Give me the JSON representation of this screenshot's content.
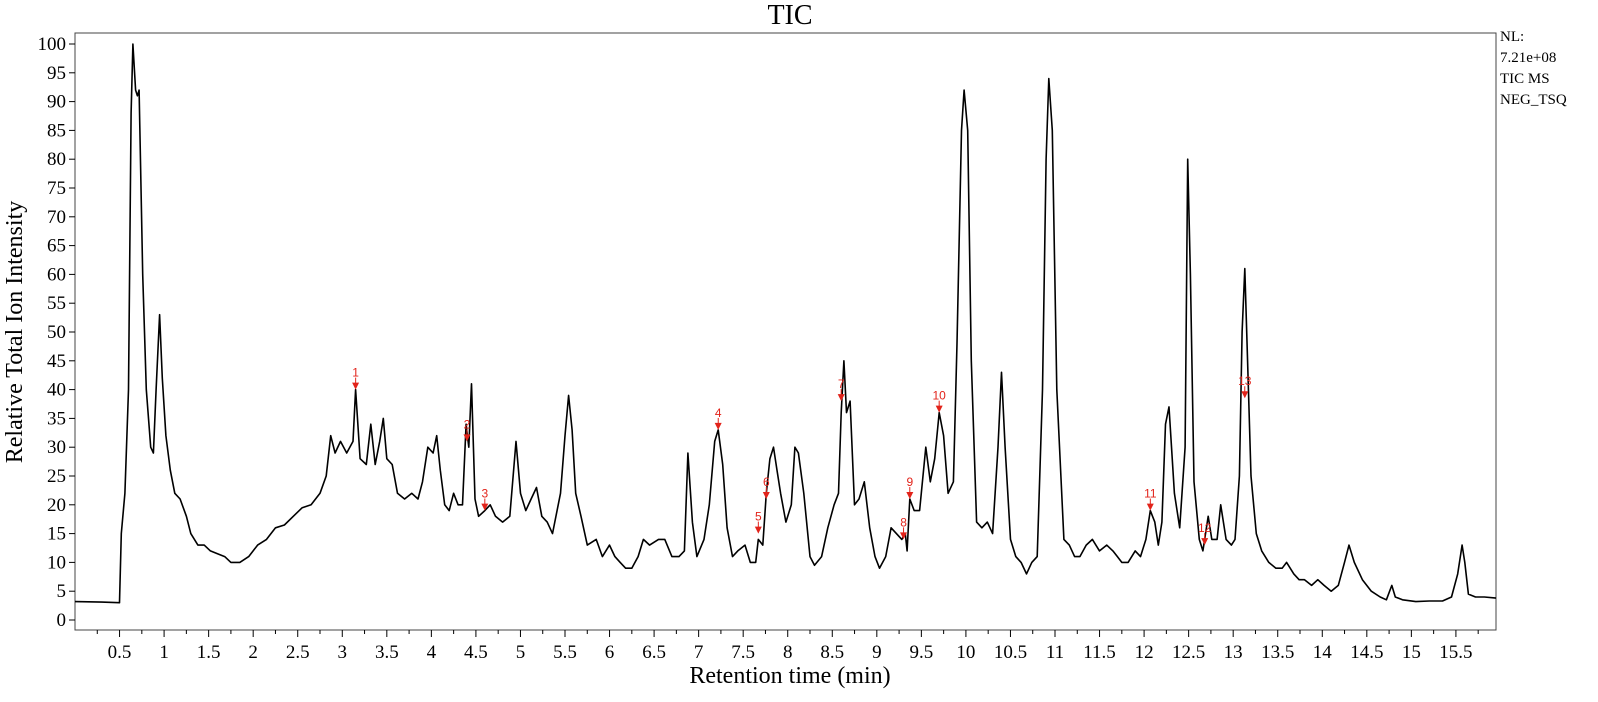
{
  "chart_data": {
    "type": "line",
    "title": "TIC",
    "xlabel": "Retention time (min)",
    "ylabel": "Relative Total Ion Intensity",
    "xlim": [
      0,
      15.95
    ],
    "ylim": [
      0,
      102
    ],
    "x_ticks": [
      0.5,
      1,
      1.5,
      2,
      2.5,
      3,
      3.5,
      4,
      4.5,
      5,
      5.5,
      6,
      6.5,
      7,
      7.5,
      8,
      8.5,
      9,
      9.5,
      10,
      10.5,
      11,
      11.5,
      12,
      12.5,
      13,
      13.5,
      14,
      14.5,
      15,
      15.5
    ],
    "y_ticks": [
      0,
      5,
      10,
      15,
      20,
      25,
      30,
      35,
      40,
      45,
      50,
      55,
      60,
      65,
      70,
      75,
      80,
      85,
      90,
      95,
      100
    ],
    "normalization_note": [
      "NL:",
      "7.21e+08",
      "TIC MS",
      "NEG_TSQ"
    ],
    "series": [
      {
        "color": "#000000",
        "points": [
          [
            0.0,
            3.2
          ],
          [
            0.3,
            3.1
          ],
          [
            0.5,
            3.0
          ],
          [
            0.52,
            15
          ],
          [
            0.56,
            22
          ],
          [
            0.6,
            40
          ],
          [
            0.63,
            88
          ],
          [
            0.65,
            100
          ],
          [
            0.68,
            92
          ],
          [
            0.7,
            91
          ],
          [
            0.72,
            92
          ],
          [
            0.76,
            60
          ],
          [
            0.8,
            40
          ],
          [
            0.85,
            30
          ],
          [
            0.88,
            29
          ],
          [
            0.91,
            40
          ],
          [
            0.95,
            53
          ],
          [
            0.98,
            42
          ],
          [
            1.02,
            32
          ],
          [
            1.07,
            26
          ],
          [
            1.12,
            22
          ],
          [
            1.18,
            21
          ],
          [
            1.25,
            18
          ],
          [
            1.3,
            15
          ],
          [
            1.38,
            13
          ],
          [
            1.45,
            13
          ],
          [
            1.52,
            12
          ],
          [
            1.6,
            11.5
          ],
          [
            1.68,
            11
          ],
          [
            1.75,
            10
          ],
          [
            1.85,
            10
          ],
          [
            1.95,
            11
          ],
          [
            2.05,
            13
          ],
          [
            2.15,
            14
          ],
          [
            2.25,
            16
          ],
          [
            2.35,
            16.5
          ],
          [
            2.45,
            18
          ],
          [
            2.55,
            19.5
          ],
          [
            2.65,
            20
          ],
          [
            2.75,
            22
          ],
          [
            2.82,
            25
          ],
          [
            2.87,
            32
          ],
          [
            2.92,
            29
          ],
          [
            2.98,
            31
          ],
          [
            3.05,
            29
          ],
          [
            3.12,
            31
          ],
          [
            3.15,
            40
          ],
          [
            3.2,
            28
          ],
          [
            3.27,
            27
          ],
          [
            3.32,
            34
          ],
          [
            3.37,
            27
          ],
          [
            3.42,
            31
          ],
          [
            3.46,
            35
          ],
          [
            3.5,
            28
          ],
          [
            3.56,
            27
          ],
          [
            3.62,
            22
          ],
          [
            3.7,
            21
          ],
          [
            3.78,
            22
          ],
          [
            3.85,
            21
          ],
          [
            3.9,
            24
          ],
          [
            3.96,
            30
          ],
          [
            4.02,
            29
          ],
          [
            4.06,
            32
          ],
          [
            4.1,
            26
          ],
          [
            4.15,
            20
          ],
          [
            4.2,
            19
          ],
          [
            4.25,
            22
          ],
          [
            4.3,
            20
          ],
          [
            4.35,
            20
          ],
          [
            4.39,
            34
          ],
          [
            4.42,
            30
          ],
          [
            4.45,
            41
          ],
          [
            4.49,
            21
          ],
          [
            4.53,
            18
          ],
          [
            4.6,
            19
          ],
          [
            4.66,
            20
          ],
          [
            4.72,
            18
          ],
          [
            4.8,
            17
          ],
          [
            4.88,
            18
          ],
          [
            4.95,
            31
          ],
          [
            5.0,
            22
          ],
          [
            5.06,
            19
          ],
          [
            5.12,
            21
          ],
          [
            5.18,
            23
          ],
          [
            5.24,
            18
          ],
          [
            5.3,
            17
          ],
          [
            5.36,
            15
          ],
          [
            5.45,
            22
          ],
          [
            5.5,
            32
          ],
          [
            5.54,
            39
          ],
          [
            5.58,
            33
          ],
          [
            5.62,
            22
          ],
          [
            5.68,
            18
          ],
          [
            5.75,
            13
          ],
          [
            5.85,
            14
          ],
          [
            5.92,
            11
          ],
          [
            6.0,
            13
          ],
          [
            6.06,
            11
          ],
          [
            6.12,
            10
          ],
          [
            6.18,
            9
          ],
          [
            6.25,
            9
          ],
          [
            6.32,
            11
          ],
          [
            6.38,
            14
          ],
          [
            6.45,
            13
          ],
          [
            6.55,
            14
          ],
          [
            6.62,
            14
          ],
          [
            6.7,
            11
          ],
          [
            6.78,
            11
          ],
          [
            6.84,
            12
          ],
          [
            6.88,
            29
          ],
          [
            6.93,
            17
          ],
          [
            6.98,
            11
          ],
          [
            7.06,
            14
          ],
          [
            7.12,
            20
          ],
          [
            7.18,
            31
          ],
          [
            7.22,
            33
          ],
          [
            7.27,
            27
          ],
          [
            7.32,
            16
          ],
          [
            7.38,
            11
          ],
          [
            7.44,
            12
          ],
          [
            7.52,
            13
          ],
          [
            7.58,
            10
          ],
          [
            7.64,
            10
          ],
          [
            7.67,
            14
          ],
          [
            7.72,
            13
          ],
          [
            7.76,
            22
          ],
          [
            7.8,
            28
          ],
          [
            7.84,
            30
          ],
          [
            7.88,
            26
          ],
          [
            7.92,
            22
          ],
          [
            7.98,
            17
          ],
          [
            8.04,
            20
          ],
          [
            8.08,
            30
          ],
          [
            8.12,
            29
          ],
          [
            8.18,
            22
          ],
          [
            8.25,
            11
          ],
          [
            8.3,
            9.5
          ],
          [
            8.38,
            11
          ],
          [
            8.45,
            16
          ],
          [
            8.52,
            20
          ],
          [
            8.57,
            22
          ],
          [
            8.6,
            36
          ],
          [
            8.63,
            45
          ],
          [
            8.66,
            36
          ],
          [
            8.7,
            38
          ],
          [
            8.75,
            20
          ],
          [
            8.8,
            21
          ],
          [
            8.86,
            24
          ],
          [
            8.92,
            16
          ],
          [
            8.98,
            11
          ],
          [
            9.03,
            9
          ],
          [
            9.1,
            11
          ],
          [
            9.16,
            16
          ],
          [
            9.22,
            15
          ],
          [
            9.28,
            14
          ],
          [
            9.32,
            15
          ],
          [
            9.34,
            12
          ],
          [
            9.37,
            21
          ],
          [
            9.42,
            19
          ],
          [
            9.48,
            19
          ],
          [
            9.55,
            30
          ],
          [
            9.6,
            24
          ],
          [
            9.65,
            28
          ],
          [
            9.7,
            36
          ],
          [
            9.75,
            32
          ],
          [
            9.8,
            22
          ],
          [
            9.86,
            24
          ],
          [
            9.9,
            48
          ],
          [
            9.95,
            85
          ],
          [
            9.98,
            92
          ],
          [
            10.02,
            85
          ],
          [
            10.06,
            45
          ],
          [
            10.12,
            17
          ],
          [
            10.18,
            16
          ],
          [
            10.24,
            17
          ],
          [
            10.3,
            15
          ],
          [
            10.36,
            30
          ],
          [
            10.4,
            43
          ],
          [
            10.44,
            30
          ],
          [
            10.5,
            14
          ],
          [
            10.56,
            11
          ],
          [
            10.62,
            10
          ],
          [
            10.68,
            8
          ],
          [
            10.74,
            10
          ],
          [
            10.8,
            11
          ],
          [
            10.86,
            40
          ],
          [
            10.9,
            80
          ],
          [
            10.93,
            94
          ],
          [
            10.97,
            85
          ],
          [
            11.02,
            40
          ],
          [
            11.1,
            14
          ],
          [
            11.16,
            13
          ],
          [
            11.22,
            11
          ],
          [
            11.28,
            11
          ],
          [
            11.35,
            13
          ],
          [
            11.42,
            14
          ],
          [
            11.5,
            12
          ],
          [
            11.58,
            13
          ],
          [
            11.65,
            12
          ],
          [
            11.7,
            11
          ],
          [
            11.75,
            10
          ],
          [
            11.82,
            10
          ],
          [
            11.9,
            12
          ],
          [
            11.96,
            11
          ],
          [
            12.02,
            14
          ],
          [
            12.07,
            19
          ],
          [
            12.12,
            17
          ],
          [
            12.16,
            13
          ],
          [
            12.2,
            17
          ],
          [
            12.24,
            34
          ],
          [
            12.28,
            37
          ],
          [
            12.34,
            22
          ],
          [
            12.4,
            16
          ],
          [
            12.46,
            30
          ],
          [
            12.49,
            80
          ],
          [
            12.52,
            60
          ],
          [
            12.56,
            24
          ],
          [
            12.62,
            14
          ],
          [
            12.66,
            12
          ],
          [
            12.72,
            18
          ],
          [
            12.76,
            14
          ],
          [
            12.82,
            14
          ],
          [
            12.86,
            20
          ],
          [
            12.92,
            14
          ],
          [
            12.98,
            13
          ],
          [
            13.02,
            14
          ],
          [
            13.07,
            25
          ],
          [
            13.1,
            50
          ],
          [
            13.13,
            61
          ],
          [
            13.16,
            46
          ],
          [
            13.2,
            25
          ],
          [
            13.26,
            15
          ],
          [
            13.32,
            12
          ],
          [
            13.4,
            10
          ],
          [
            13.48,
            9
          ],
          [
            13.55,
            9
          ],
          [
            13.6,
            10
          ],
          [
            13.68,
            8
          ],
          [
            13.74,
            7
          ],
          [
            13.8,
            7
          ],
          [
            13.88,
            6
          ],
          [
            13.95,
            7
          ],
          [
            14.02,
            6
          ],
          [
            14.1,
            5
          ],
          [
            14.18,
            6
          ],
          [
            14.25,
            10
          ],
          [
            14.3,
            13
          ],
          [
            14.36,
            10
          ],
          [
            14.45,
            7
          ],
          [
            14.55,
            5
          ],
          [
            14.65,
            4
          ],
          [
            14.72,
            3.5
          ],
          [
            14.78,
            6
          ],
          [
            14.82,
            4
          ],
          [
            14.9,
            3.5
          ],
          [
            15.05,
            3.2
          ],
          [
            15.2,
            3.3
          ],
          [
            15.35,
            3.3
          ],
          [
            15.45,
            4
          ],
          [
            15.52,
            8
          ],
          [
            15.57,
            13
          ],
          [
            15.6,
            10
          ],
          [
            15.64,
            4.5
          ],
          [
            15.72,
            4
          ],
          [
            15.82,
            4
          ],
          [
            15.95,
            3.8
          ]
        ]
      }
    ],
    "peaks": [
      {
        "label": "1",
        "x": 3.15,
        "y": 40
      },
      {
        "label": "2",
        "x": 4.4,
        "y": 31
      },
      {
        "label": "3",
        "x": 4.6,
        "y": 19
      },
      {
        "label": "4",
        "x": 7.22,
        "y": 33
      },
      {
        "label": "5",
        "x": 7.67,
        "y": 15
      },
      {
        "label": "6",
        "x": 7.76,
        "y": 21
      },
      {
        "label": "7",
        "x": 8.6,
        "y": 38
      },
      {
        "label": "8",
        "x": 9.3,
        "y": 14
      },
      {
        "label": "9",
        "x": 9.37,
        "y": 21
      },
      {
        "label": "10",
        "x": 9.7,
        "y": 36
      },
      {
        "label": "11",
        "x": 12.07,
        "y": 19
      },
      {
        "label": "12",
        "x": 12.68,
        "y": 13
      },
      {
        "label": "13",
        "x": 13.13,
        "y": 38.5
      }
    ],
    "grid": false,
    "legend": "none",
    "colors": {
      "trace": "#000000",
      "annotations": "#e2231a"
    }
  }
}
